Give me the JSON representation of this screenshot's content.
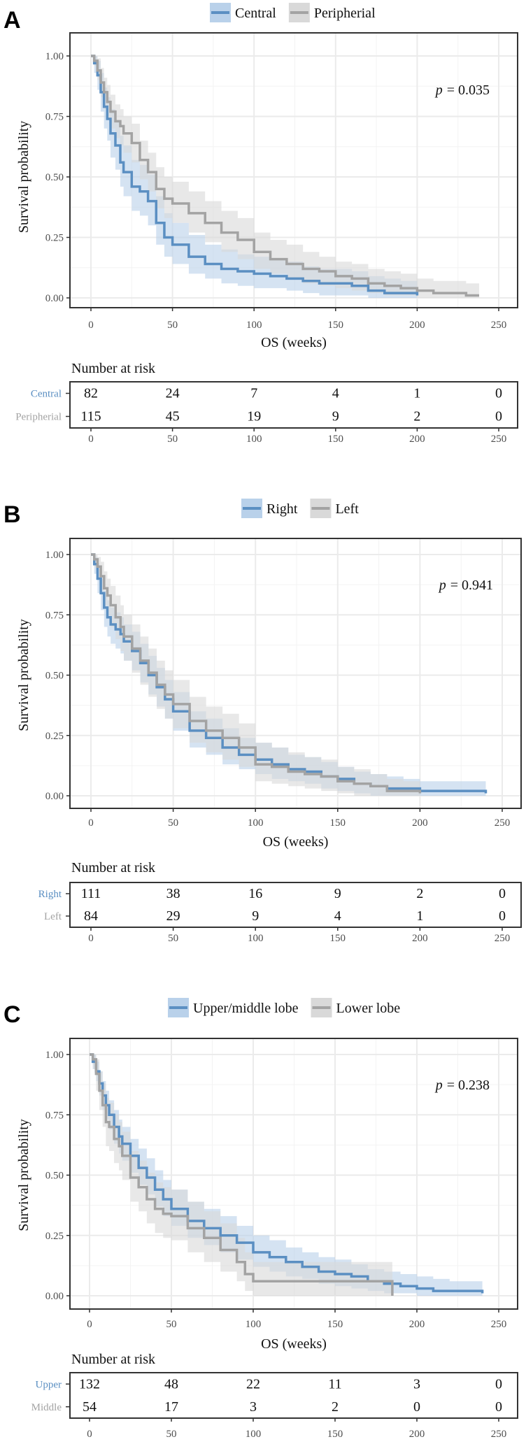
{
  "colors": {
    "blue": "#5b8fc2",
    "blue_fill": "#b9d1ea",
    "gray": "#a3a3a3",
    "gray_fill": "#d9d9d9",
    "grid": "#ebebeb",
    "axis_text": "#4d4d4d"
  },
  "chart_data": [
    {
      "type": "line",
      "subtype": "kaplan-meier",
      "panel": "A",
      "xlabel": "OS (weeks)",
      "ylabel": "Survival probability",
      "xlim": [
        0,
        250
      ],
      "ylim": [
        0,
        1
      ],
      "x_ticks": [
        "0",
        "50",
        "100",
        "150",
        "200",
        "250"
      ],
      "y_ticks": [
        "0.00",
        "0.25",
        "0.50",
        "0.75",
        "1.00"
      ],
      "grid": true,
      "legend_position": "top",
      "pvalue_label": "p",
      "pvalue_text": "= 0.035",
      "series": [
        {
          "name": "Central",
          "color": "blue",
          "x": [
            0,
            2,
            4,
            6,
            8,
            10,
            12,
            15,
            18,
            20,
            25,
            30,
            35,
            40,
            45,
            50,
            60,
            70,
            80,
            90,
            100,
            110,
            120,
            130,
            140,
            150,
            160,
            170,
            180,
            190,
            200
          ],
          "y": [
            1.0,
            0.97,
            0.92,
            0.85,
            0.79,
            0.74,
            0.68,
            0.63,
            0.56,
            0.52,
            0.46,
            0.44,
            0.4,
            0.31,
            0.25,
            0.22,
            0.17,
            0.14,
            0.12,
            0.11,
            0.1,
            0.09,
            0.08,
            0.07,
            0.06,
            0.06,
            0.05,
            0.03,
            0.02,
            0.02,
            0.01
          ],
          "upper": [
            1.0,
            1.0,
            0.98,
            0.93,
            0.87,
            0.83,
            0.78,
            0.73,
            0.67,
            0.63,
            0.57,
            0.55,
            0.51,
            0.42,
            0.35,
            0.31,
            0.26,
            0.22,
            0.2,
            0.18,
            0.17,
            0.16,
            0.15,
            0.13,
            0.12,
            0.12,
            0.11,
            0.09,
            0.08,
            0.07,
            0.06
          ],
          "lower": [
            1.0,
            0.93,
            0.86,
            0.77,
            0.7,
            0.65,
            0.58,
            0.53,
            0.46,
            0.42,
            0.36,
            0.34,
            0.3,
            0.22,
            0.17,
            0.14,
            0.1,
            0.08,
            0.06,
            0.05,
            0.04,
            0.04,
            0.03,
            0.02,
            0.01,
            0.01,
            0.01,
            0.0,
            0.0,
            0.0,
            0.0
          ]
        },
        {
          "name": "Peripherial",
          "color": "gray",
          "x": [
            0,
            2,
            4,
            6,
            8,
            10,
            12,
            15,
            18,
            20,
            25,
            30,
            35,
            40,
            45,
            50,
            60,
            70,
            80,
            90,
            100,
            110,
            120,
            130,
            140,
            150,
            160,
            170,
            180,
            190,
            200,
            210,
            220,
            230,
            238
          ],
          "y": [
            1.0,
            0.98,
            0.94,
            0.89,
            0.85,
            0.81,
            0.77,
            0.73,
            0.71,
            0.68,
            0.64,
            0.57,
            0.52,
            0.45,
            0.41,
            0.39,
            0.35,
            0.31,
            0.27,
            0.24,
            0.19,
            0.16,
            0.14,
            0.12,
            0.11,
            0.09,
            0.08,
            0.06,
            0.05,
            0.04,
            0.03,
            0.02,
            0.02,
            0.01,
            0.01
          ],
          "upper": [
            1.0,
            1.0,
            0.99,
            0.95,
            0.91,
            0.88,
            0.84,
            0.8,
            0.78,
            0.75,
            0.72,
            0.65,
            0.6,
            0.54,
            0.5,
            0.48,
            0.44,
            0.4,
            0.36,
            0.33,
            0.27,
            0.24,
            0.22,
            0.19,
            0.17,
            0.15,
            0.14,
            0.12,
            0.11,
            0.1,
            0.08,
            0.07,
            0.07,
            0.06,
            0.05
          ],
          "lower": [
            1.0,
            0.96,
            0.9,
            0.83,
            0.78,
            0.74,
            0.7,
            0.66,
            0.63,
            0.6,
            0.56,
            0.49,
            0.44,
            0.37,
            0.33,
            0.31,
            0.27,
            0.23,
            0.19,
            0.16,
            0.12,
            0.1,
            0.08,
            0.06,
            0.05,
            0.04,
            0.03,
            0.02,
            0.01,
            0.01,
            0.0,
            0.0,
            0.0,
            0.0,
            0.0
          ]
        }
      ],
      "risk_table": {
        "title": "Number at risk",
        "times": [
          "0",
          "50",
          "100",
          "150",
          "200",
          "250"
        ],
        "rows": [
          {
            "label": "Central",
            "color": "blue",
            "values": [
              "82",
              "24",
              "7",
              "4",
              "1",
              "0"
            ]
          },
          {
            "label": "Peripherial",
            "color": "gray",
            "values": [
              "115",
              "45",
              "19",
              "9",
              "2",
              "0"
            ]
          }
        ]
      }
    },
    {
      "type": "line",
      "subtype": "kaplan-meier",
      "panel": "B",
      "xlabel": "OS (weeks)",
      "ylabel": "Survival probability",
      "xlim": [
        0,
        250
      ],
      "ylim": [
        0,
        1
      ],
      "x_ticks": [
        "0",
        "50",
        "100",
        "150",
        "200",
        "250"
      ],
      "y_ticks": [
        "0.00",
        "0.25",
        "0.50",
        "0.75",
        "1.00"
      ],
      "grid": true,
      "legend_position": "top",
      "pvalue_label": "p",
      "pvalue_text": "= 0.941",
      "series": [
        {
          "name": "Right",
          "color": "blue",
          "x": [
            0,
            2,
            4,
            6,
            8,
            10,
            12,
            15,
            18,
            20,
            25,
            30,
            35,
            40,
            45,
            50,
            60,
            70,
            80,
            90,
            100,
            110,
            120,
            130,
            140,
            150,
            160,
            170,
            180,
            190,
            200,
            210,
            220,
            230,
            240
          ],
          "y": [
            1.0,
            0.96,
            0.9,
            0.84,
            0.78,
            0.74,
            0.71,
            0.69,
            0.67,
            0.64,
            0.6,
            0.55,
            0.5,
            0.45,
            0.4,
            0.35,
            0.27,
            0.24,
            0.2,
            0.17,
            0.15,
            0.13,
            0.11,
            0.1,
            0.08,
            0.07,
            0.05,
            0.04,
            0.03,
            0.03,
            0.02,
            0.02,
            0.02,
            0.02,
            0.01
          ],
          "upper": [
            1.0,
            0.99,
            0.95,
            0.9,
            0.85,
            0.81,
            0.78,
            0.76,
            0.74,
            0.71,
            0.68,
            0.63,
            0.58,
            0.53,
            0.48,
            0.43,
            0.35,
            0.32,
            0.28,
            0.24,
            0.22,
            0.2,
            0.17,
            0.16,
            0.14,
            0.12,
            0.1,
            0.09,
            0.08,
            0.07,
            0.06,
            0.06,
            0.06,
            0.06,
            0.05
          ],
          "lower": [
            1.0,
            0.92,
            0.84,
            0.77,
            0.7,
            0.66,
            0.63,
            0.61,
            0.59,
            0.56,
            0.52,
            0.47,
            0.42,
            0.37,
            0.32,
            0.27,
            0.2,
            0.17,
            0.13,
            0.11,
            0.09,
            0.07,
            0.06,
            0.05,
            0.03,
            0.02,
            0.01,
            0.0,
            0.0,
            0.0,
            0.0,
            0.0,
            0.0,
            0.0,
            0.0
          ]
        },
        {
          "name": "Left",
          "color": "gray",
          "x": [
            0,
            2,
            4,
            6,
            8,
            10,
            12,
            15,
            18,
            20,
            25,
            30,
            35,
            40,
            45,
            50,
            60,
            70,
            80,
            90,
            100,
            110,
            120,
            130,
            140,
            150,
            160,
            170,
            180,
            190,
            200
          ],
          "y": [
            1.0,
            0.98,
            0.95,
            0.91,
            0.86,
            0.83,
            0.79,
            0.74,
            0.7,
            0.66,
            0.61,
            0.56,
            0.51,
            0.46,
            0.42,
            0.38,
            0.31,
            0.27,
            0.24,
            0.2,
            0.13,
            0.12,
            0.1,
            0.09,
            0.08,
            0.06,
            0.05,
            0.04,
            0.02,
            0.02,
            0.01
          ],
          "upper": [
            1.0,
            1.0,
            0.99,
            0.97,
            0.93,
            0.9,
            0.87,
            0.83,
            0.79,
            0.75,
            0.71,
            0.66,
            0.61,
            0.56,
            0.52,
            0.48,
            0.41,
            0.37,
            0.34,
            0.3,
            0.22,
            0.2,
            0.18,
            0.16,
            0.15,
            0.12,
            0.11,
            0.09,
            0.07,
            0.06,
            0.05
          ],
          "lower": [
            1.0,
            0.95,
            0.9,
            0.85,
            0.79,
            0.75,
            0.7,
            0.65,
            0.6,
            0.56,
            0.51,
            0.46,
            0.41,
            0.36,
            0.32,
            0.28,
            0.22,
            0.18,
            0.15,
            0.12,
            0.06,
            0.05,
            0.04,
            0.03,
            0.02,
            0.01,
            0.0,
            0.0,
            0.0,
            0.0,
            0.0
          ]
        }
      ],
      "risk_table": {
        "title": "Number at risk",
        "times": [
          "0",
          "50",
          "100",
          "150",
          "200",
          "250"
        ],
        "rows": [
          {
            "label": "Right",
            "color": "blue",
            "values": [
              "111",
              "38",
              "16",
              "9",
              "2",
              "0"
            ]
          },
          {
            "label": "Left",
            "color": "gray",
            "values": [
              "84",
              "29",
              "9",
              "4",
              "1",
              "0"
            ]
          }
        ]
      }
    },
    {
      "type": "line",
      "subtype": "kaplan-meier",
      "panel": "C",
      "xlabel": "OS (weeks)",
      "ylabel": "Survival probability",
      "xlim": [
        0,
        250
      ],
      "ylim": [
        0,
        1
      ],
      "x_ticks": [
        "0",
        "50",
        "100",
        "150",
        "200",
        "250"
      ],
      "y_ticks": [
        "0.00",
        "0.25",
        "0.50",
        "0.75",
        "1.00"
      ],
      "grid": true,
      "legend_position": "top",
      "pvalue_label": "p",
      "pvalue_text": "= 0.238",
      "series": [
        {
          "name": "Upper/middle lobe",
          "color": "blue",
          "x": [
            0,
            2,
            4,
            6,
            8,
            10,
            12,
            15,
            18,
            20,
            25,
            30,
            35,
            40,
            45,
            50,
            60,
            70,
            80,
            90,
            100,
            110,
            120,
            130,
            140,
            150,
            160,
            170,
            180,
            190,
            200,
            210,
            220,
            230,
            240
          ],
          "y": [
            1.0,
            0.97,
            0.93,
            0.88,
            0.83,
            0.79,
            0.75,
            0.7,
            0.66,
            0.63,
            0.58,
            0.53,
            0.49,
            0.44,
            0.4,
            0.36,
            0.31,
            0.28,
            0.25,
            0.22,
            0.18,
            0.16,
            0.14,
            0.12,
            0.1,
            0.09,
            0.08,
            0.06,
            0.05,
            0.04,
            0.03,
            0.02,
            0.02,
            0.02,
            0.01
          ],
          "upper": [
            1.0,
            1.0,
            0.97,
            0.93,
            0.89,
            0.85,
            0.81,
            0.77,
            0.73,
            0.7,
            0.65,
            0.61,
            0.57,
            0.52,
            0.48,
            0.44,
            0.39,
            0.36,
            0.33,
            0.29,
            0.25,
            0.23,
            0.2,
            0.18,
            0.16,
            0.15,
            0.13,
            0.11,
            0.1,
            0.09,
            0.08,
            0.07,
            0.06,
            0.06,
            0.05
          ],
          "lower": [
            1.0,
            0.94,
            0.89,
            0.83,
            0.77,
            0.73,
            0.69,
            0.63,
            0.59,
            0.56,
            0.51,
            0.46,
            0.42,
            0.37,
            0.33,
            0.29,
            0.24,
            0.21,
            0.18,
            0.15,
            0.12,
            0.1,
            0.08,
            0.07,
            0.05,
            0.04,
            0.03,
            0.02,
            0.01,
            0.01,
            0.0,
            0.0,
            0.0,
            0.0,
            0.0
          ]
        },
        {
          "name": "Lower lobe",
          "color": "gray",
          "x": [
            0,
            2,
            4,
            6,
            8,
            10,
            12,
            15,
            18,
            20,
            25,
            30,
            35,
            40,
            45,
            50,
            60,
            70,
            80,
            90,
            95,
            100,
            110,
            120,
            130,
            140,
            150,
            160,
            170,
            180,
            185
          ],
          "y": [
            1.0,
            0.98,
            0.92,
            0.85,
            0.79,
            0.72,
            0.7,
            0.65,
            0.62,
            0.58,
            0.49,
            0.45,
            0.4,
            0.36,
            0.34,
            0.33,
            0.28,
            0.24,
            0.19,
            0.14,
            0.09,
            0.06,
            0.06,
            0.06,
            0.06,
            0.06,
            0.06,
            0.06,
            0.06,
            0.06,
            0.0
          ],
          "upper": [
            1.0,
            1.0,
            0.98,
            0.93,
            0.88,
            0.82,
            0.8,
            0.75,
            0.72,
            0.68,
            0.6,
            0.56,
            0.51,
            0.47,
            0.45,
            0.44,
            0.39,
            0.35,
            0.3,
            0.24,
            0.18,
            0.14,
            0.14,
            0.14,
            0.14,
            0.14,
            0.14,
            0.14,
            0.14,
            0.14,
            0.14
          ],
          "lower": [
            1.0,
            0.94,
            0.85,
            0.77,
            0.7,
            0.62,
            0.6,
            0.55,
            0.52,
            0.48,
            0.39,
            0.35,
            0.3,
            0.26,
            0.24,
            0.23,
            0.18,
            0.14,
            0.1,
            0.06,
            0.02,
            0.0,
            0.0,
            0.0,
            0.0,
            0.0,
            0.0,
            0.0,
            0.0,
            0.0,
            0.0
          ]
        }
      ],
      "risk_table": {
        "title": "Number at risk",
        "times": [
          "0",
          "50",
          "100",
          "150",
          "200",
          "250"
        ],
        "rows": [
          {
            "label": "Upper",
            "color": "blue",
            "values": [
              "132",
              "48",
              "22",
              "11",
              "3",
              "0"
            ]
          },
          {
            "label": "Middle",
            "color": "gray",
            "values": [
              "54",
              "17",
              "3",
              "2",
              "0",
              "0"
            ]
          }
        ]
      }
    }
  ]
}
